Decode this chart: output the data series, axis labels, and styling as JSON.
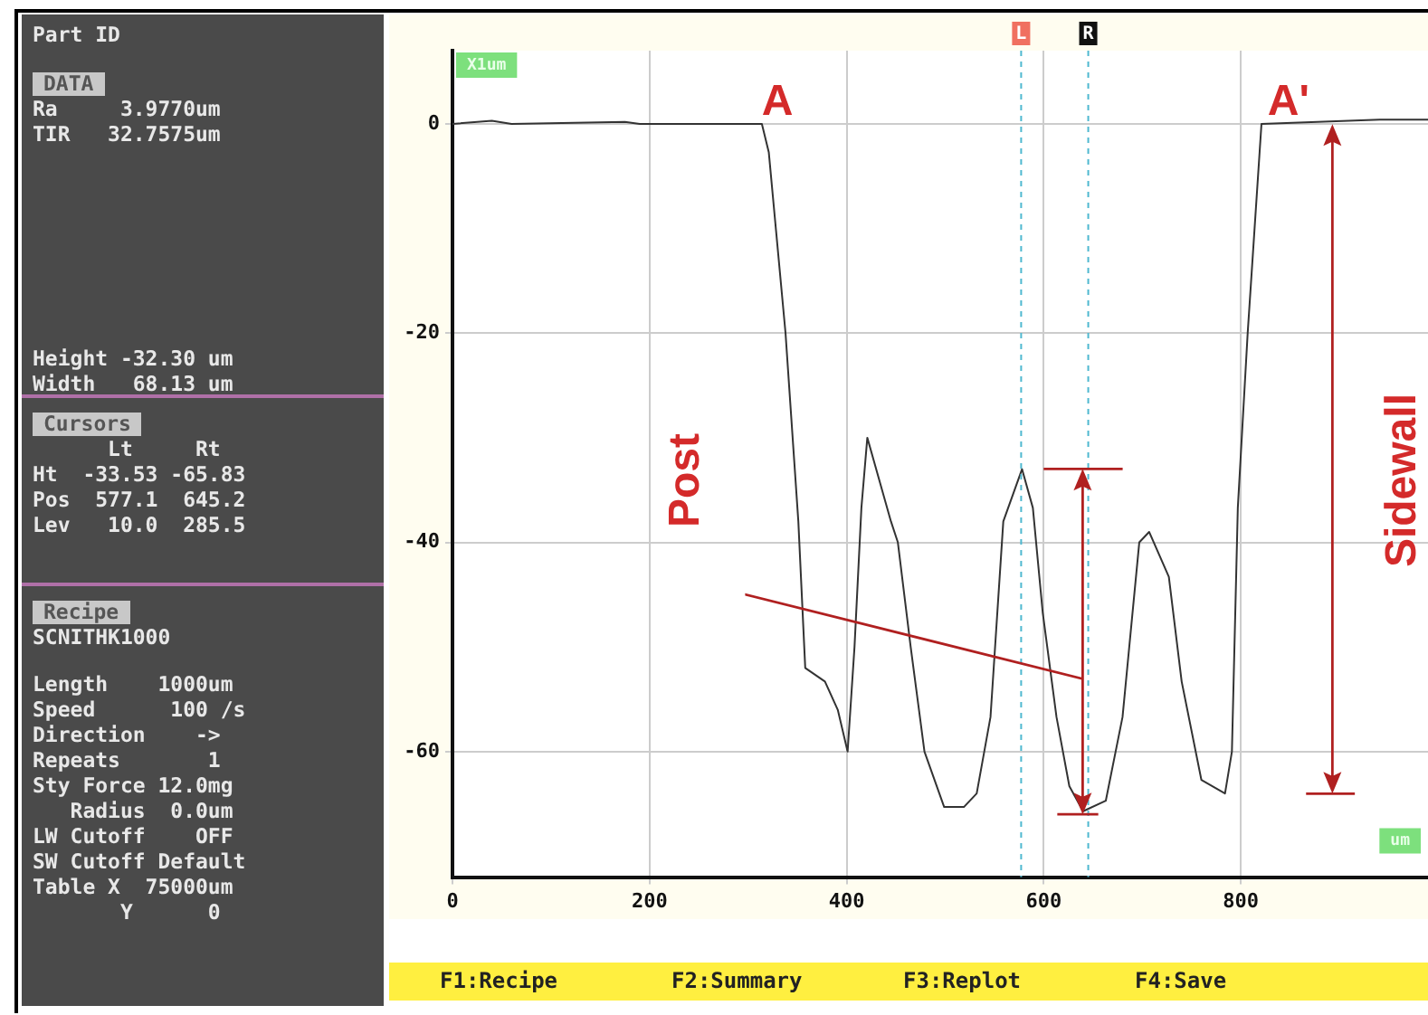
{
  "chart_data": {
    "type": "line",
    "xlabel": "um",
    "ylabel": "X1um",
    "x": [
      0,
      40,
      60,
      175,
      190,
      314,
      321,
      338,
      351,
      358,
      378,
      391,
      401,
      408,
      415,
      421,
      445,
      452,
      465,
      479,
      499,
      519,
      532,
      546,
      559,
      578,
      589,
      599,
      613,
      626,
      640,
      663,
      680,
      697,
      707,
      727,
      740,
      760,
      784,
      791,
      797,
      807,
      821,
      941,
      990
    ],
    "series": [
      {
        "color": "#333333",
        "values": [
          0,
          0.3,
          0,
          0.2,
          0,
          0,
          -2.7,
          -20,
          -38,
          -52,
          -53.3,
          -56,
          -60,
          -50,
          -36.7,
          -30,
          -38,
          -40,
          -50,
          -60,
          -65.3,
          -65.3,
          -64,
          -56.7,
          -38,
          -33,
          -36.7,
          -46.7,
          -56.7,
          -63.3,
          -65.7,
          -64.7,
          -56.7,
          -40,
          -39,
          -43.3,
          -53.3,
          -62.7,
          -64,
          -60,
          -36.7,
          -20,
          0,
          0.4,
          0.4
        ]
      }
    ],
    "xlim": [
      0,
      990
    ],
    "xticks": [
      0,
      200,
      400,
      600,
      800
    ],
    "ylim": [
      -72,
      7
    ],
    "yticks": [
      0,
      -20,
      -40,
      -60
    ],
    "grid": true,
    "legend": false,
    "marker": "none",
    "line_style": "solid",
    "ref_lines": [
      {
        "axis": "x",
        "value": 577.1,
        "label": "L",
        "color": "#4fb8d0",
        "line_style": "dashed"
      },
      {
        "axis": "x",
        "value": 645.2,
        "label": "R",
        "color": "#4fb8d0",
        "line_style": "dashed"
      }
    ],
    "annotations": [
      "A",
      "A'",
      "Post",
      "Sidewall",
      "Part ID",
      "DATA",
      "Ra     3.9770um",
      "TIR   32.7575um",
      "Height -32.30 um",
      "Width   68.13 um",
      "Cursors",
      "      Lt     Rt",
      "Ht  -33.53 -65.83",
      "Pos  577.1  645.2",
      "Lev   10.0  285.5",
      "Recipe",
      "SCNITHK1000",
      "Length    1000um",
      "Speed      100 /s",
      "Direction    ->",
      "Repeats       1",
      "Sty Force 12.0mg",
      "   Radius  0.0um",
      "LW Cutoff    OFF",
      "SW Cutoff Default",
      "Table X  75000um",
      "       Y      0",
      "F1:Recipe",
      "F2:Summary",
      "F3:Replot",
      "F4:Save"
    ]
  }
}
